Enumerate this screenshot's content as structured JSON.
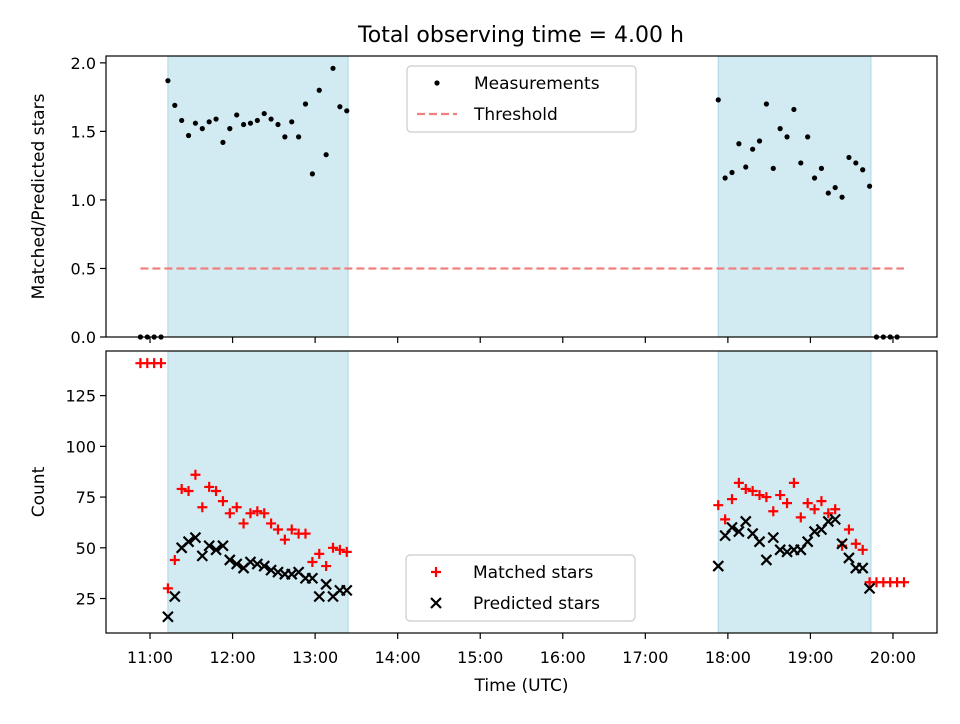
{
  "title": "Total observing time = 4.00 h",
  "chart_data": [
    {
      "type": "scatter",
      "ylabel": "Matched/Predicted stars",
      "xlim": [
        "10:28",
        "20:32"
      ],
      "ylim": [
        0,
        2.05
      ],
      "yticks": [
        0,
        0.5,
        1.0,
        1.5,
        2.0
      ],
      "yticklabels": [
        "0.0",
        "0.5",
        "1.0",
        "1.5",
        "2.0"
      ],
      "xtick_values": [
        "11:00",
        "12:00",
        "13:00",
        "14:00",
        "15:00",
        "16:00",
        "17:00",
        "18:00",
        "19:00",
        "20:00"
      ],
      "shaded_intervals": [
        [
          "11:13",
          "13:24"
        ],
        [
          "17:53",
          "19:44"
        ]
      ],
      "shade_color": "#add8e6",
      "legend_position": "upper center",
      "series": [
        {
          "name": "Measurements",
          "kind": "scatter",
          "color": "#000000",
          "points": [
            [
              "10:53",
              0
            ],
            [
              "10:58",
              0
            ],
            [
              "11:03",
              0
            ],
            [
              "11:08",
              0
            ],
            [
              "11:13",
              1.87
            ],
            [
              "11:18",
              1.69
            ],
            [
              "11:23",
              1.58
            ],
            [
              "11:28",
              1.47
            ],
            [
              "11:33",
              1.56
            ],
            [
              "11:38",
              1.52
            ],
            [
              "11:43",
              1.57
            ],
            [
              "11:48",
              1.59
            ],
            [
              "11:53",
              1.42
            ],
            [
              "11:58",
              1.52
            ],
            [
              "12:03",
              1.62
            ],
            [
              "12:08",
              1.55
            ],
            [
              "12:13",
              1.56
            ],
            [
              "12:18",
              1.58
            ],
            [
              "12:23",
              1.63
            ],
            [
              "12:28",
              1.59
            ],
            [
              "12:33",
              1.55
            ],
            [
              "12:38",
              1.46
            ],
            [
              "12:43",
              1.57
            ],
            [
              "12:48",
              1.46
            ],
            [
              "12:53",
              1.7
            ],
            [
              "12:58",
              1.19
            ],
            [
              "13:03",
              1.8
            ],
            [
              "13:08",
              1.33
            ],
            [
              "13:13",
              1.96
            ],
            [
              "13:18",
              1.68
            ],
            [
              "13:23",
              1.65
            ],
            [
              "17:53",
              1.73
            ],
            [
              "17:58",
              1.16
            ],
            [
              "18:03",
              1.2
            ],
            [
              "18:08",
              1.41
            ],
            [
              "18:13",
              1.24
            ],
            [
              "18:18",
              1.37
            ],
            [
              "18:23",
              1.43
            ],
            [
              "18:28",
              1.7
            ],
            [
              "18:33",
              1.23
            ],
            [
              "18:38",
              1.52
            ],
            [
              "18:43",
              1.46
            ],
            [
              "18:48",
              1.66
            ],
            [
              "18:53",
              1.27
            ],
            [
              "18:58",
              1.46
            ],
            [
              "19:03",
              1.16
            ],
            [
              "19:08",
              1.23
            ],
            [
              "19:13",
              1.05
            ],
            [
              "19:18",
              1.09
            ],
            [
              "19:23",
              1.02
            ],
            [
              "19:28",
              1.31
            ],
            [
              "19:33",
              1.27
            ],
            [
              "19:38",
              1.22
            ],
            [
              "19:43",
              1.1
            ],
            [
              "19:48",
              0
            ],
            [
              "19:53",
              0
            ],
            [
              "19:58",
              0
            ],
            [
              "20:03",
              0
            ]
          ]
        },
        {
          "name": "Threshold",
          "kind": "dashed-line",
          "color": "#f08080",
          "x": [
            "10:53",
            "20:08"
          ],
          "y": [
            0.5,
            0.5
          ]
        }
      ]
    },
    {
      "type": "scatter",
      "xlabel": "Time (UTC)",
      "ylabel": "Count",
      "xlim": [
        "10:28",
        "20:32"
      ],
      "ylim": [
        8,
        147
      ],
      "yticks": [
        25,
        50,
        75,
        100,
        125
      ],
      "xtick_values": [
        "11:00",
        "12:00",
        "13:00",
        "14:00",
        "15:00",
        "16:00",
        "17:00",
        "18:00",
        "19:00",
        "20:00"
      ],
      "xticklabels": [
        "11:00",
        "12:00",
        "13:00",
        "14:00",
        "15:00",
        "16:00",
        "17:00",
        "18:00",
        "19:00",
        "20:00"
      ],
      "shaded_intervals": [
        [
          "11:13",
          "13:24"
        ],
        [
          "17:53",
          "19:44"
        ]
      ],
      "shade_color": "#add8e6",
      "legend_position": "lower center",
      "series": [
        {
          "name": "Matched stars",
          "kind": "plus",
          "color": "#ff0000",
          "points": [
            [
              "10:53",
              141
            ],
            [
              "10:58",
              141
            ],
            [
              "11:03",
              141
            ],
            [
              "11:08",
              141
            ],
            [
              "11:13",
              30
            ],
            [
              "11:18",
              44
            ],
            [
              "11:23",
              79
            ],
            [
              "11:28",
              78
            ],
            [
              "11:33",
              86
            ],
            [
              "11:38",
              70
            ],
            [
              "11:43",
              80
            ],
            [
              "11:48",
              78
            ],
            [
              "11:53",
              73
            ],
            [
              "11:58",
              67
            ],
            [
              "12:03",
              70
            ],
            [
              "12:08",
              62
            ],
            [
              "12:13",
              67
            ],
            [
              "12:18",
              68
            ],
            [
              "12:23",
              67
            ],
            [
              "12:28",
              62
            ],
            [
              "12:33",
              59
            ],
            [
              "12:38",
              54
            ],
            [
              "12:43",
              59
            ],
            [
              "12:48",
              57
            ],
            [
              "12:53",
              57
            ],
            [
              "12:58",
              43
            ],
            [
              "13:03",
              47
            ],
            [
              "13:08",
              41
            ],
            [
              "13:13",
              50
            ],
            [
              "13:18",
              49
            ],
            [
              "13:23",
              48
            ],
            [
              "17:53",
              71
            ],
            [
              "17:58",
              64
            ],
            [
              "18:03",
              74
            ],
            [
              "18:08",
              82
            ],
            [
              "18:13",
              79
            ],
            [
              "18:18",
              78
            ],
            [
              "18:23",
              76
            ],
            [
              "18:28",
              75
            ],
            [
              "18:33",
              68
            ],
            [
              "18:38",
              76
            ],
            [
              "18:43",
              72
            ],
            [
              "18:48",
              82
            ],
            [
              "18:53",
              65
            ],
            [
              "18:58",
              72
            ],
            [
              "19:03",
              69
            ],
            [
              "19:08",
              73
            ],
            [
              "19:13",
              67
            ],
            [
              "19:18",
              69
            ],
            [
              "19:23",
              51
            ],
            [
              "19:28",
              59
            ],
            [
              "19:33",
              52
            ],
            [
              "19:38",
              49
            ],
            [
              "19:43",
              33
            ],
            [
              "19:48",
              33
            ],
            [
              "19:53",
              33
            ],
            [
              "19:58",
              33
            ],
            [
              "20:03",
              33
            ],
            [
              "20:08",
              33
            ]
          ]
        },
        {
          "name": "Predicted stars",
          "kind": "cross",
          "color": "#000000",
          "points": [
            [
              "11:13",
              16
            ],
            [
              "11:18",
              26
            ],
            [
              "11:23",
              50
            ],
            [
              "11:28",
              53
            ],
            [
              "11:33",
              55
            ],
            [
              "11:38",
              46
            ],
            [
              "11:43",
              51
            ],
            [
              "11:48",
              49
            ],
            [
              "11:53",
              51
            ],
            [
              "11:58",
              44
            ],
            [
              "12:03",
              42
            ],
            [
              "12:08",
              40
            ],
            [
              "12:13",
              43
            ],
            [
              "12:18",
              42
            ],
            [
              "12:23",
              41
            ],
            [
              "12:28",
              39
            ],
            [
              "12:33",
              38
            ],
            [
              "12:38",
              37
            ],
            [
              "12:43",
              37
            ],
            [
              "12:48",
              38
            ],
            [
              "12:53",
              35
            ],
            [
              "12:58",
              35
            ],
            [
              "13:03",
              26
            ],
            [
              "13:08",
              32
            ],
            [
              "13:13",
              26
            ],
            [
              "13:18",
              29
            ],
            [
              "13:23",
              29
            ],
            [
              "17:53",
              41
            ],
            [
              "17:58",
              56
            ],
            [
              "18:03",
              60
            ],
            [
              "18:08",
              58
            ],
            [
              "18:13",
              63
            ],
            [
              "18:18",
              57
            ],
            [
              "18:23",
              53
            ],
            [
              "18:28",
              44
            ],
            [
              "18:33",
              55
            ],
            [
              "18:38",
              49
            ],
            [
              "18:43",
              48
            ],
            [
              "18:48",
              49
            ],
            [
              "18:53",
              49
            ],
            [
              "18:58",
              53
            ],
            [
              "19:03",
              58
            ],
            [
              "19:08",
              59
            ],
            [
              "19:13",
              63
            ],
            [
              "19:18",
              64
            ],
            [
              "19:23",
              52
            ],
            [
              "19:28",
              45
            ],
            [
              "19:33",
              40
            ],
            [
              "19:38",
              40
            ],
            [
              "19:43",
              30
            ]
          ]
        }
      ]
    }
  ]
}
